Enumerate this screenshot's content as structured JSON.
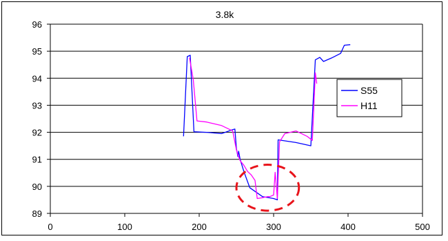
{
  "chart_data": {
    "type": "line",
    "title": "3.8k",
    "xlabel": "",
    "ylabel": "",
    "xlim": [
      0,
      500
    ],
    "ylim": [
      89,
      96
    ],
    "x_ticks": [
      0,
      100,
      200,
      300,
      400,
      500
    ],
    "y_ticks": [
      89,
      90,
      91,
      92,
      93,
      94,
      95,
      96
    ],
    "grid": "horizontal",
    "legend_position": "right",
    "series": [
      {
        "name": "S55",
        "color": "#0000ff",
        "points": [
          [
            179,
            91.85
          ],
          [
            184,
            94.8
          ],
          [
            188,
            94.85
          ],
          [
            193,
            92.02
          ],
          [
            210,
            92.0
          ],
          [
            230,
            91.95
          ],
          [
            245,
            92.1
          ],
          [
            248,
            92.12
          ],
          [
            250,
            91.4
          ],
          [
            252,
            91.1
          ],
          [
            253,
            91.3
          ],
          [
            255,
            91.0
          ],
          [
            260,
            90.55
          ],
          [
            268,
            89.95
          ],
          [
            285,
            89.62
          ],
          [
            300,
            89.55
          ],
          [
            305,
            89.5
          ],
          [
            306,
            91.72
          ],
          [
            330,
            91.62
          ],
          [
            350,
            91.5
          ],
          [
            356,
            94.68
          ],
          [
            362,
            94.77
          ],
          [
            367,
            94.62
          ],
          [
            378,
            94.75
          ],
          [
            390,
            94.92
          ],
          [
            395,
            95.22
          ],
          [
            403,
            95.24
          ]
        ]
      },
      {
        "name": "H11",
        "color": "#ff00ff",
        "points": [
          [
            187,
            94.75
          ],
          [
            192,
            93.95
          ],
          [
            197,
            92.42
          ],
          [
            210,
            92.38
          ],
          [
            230,
            92.25
          ],
          [
            245,
            92.05
          ],
          [
            250,
            91.35
          ],
          [
            253,
            91.1
          ],
          [
            255,
            90.95
          ],
          [
            260,
            90.78
          ],
          [
            265,
            90.55
          ],
          [
            270,
            90.42
          ],
          [
            275,
            90.22
          ],
          [
            278,
            89.55
          ],
          [
            285,
            89.58
          ],
          [
            292,
            89.62
          ],
          [
            295,
            89.62
          ],
          [
            300,
            89.68
          ],
          [
            302,
            90.52
          ],
          [
            305,
            89.55
          ],
          [
            308,
            91.65
          ],
          [
            315,
            91.95
          ],
          [
            330,
            92.05
          ],
          [
            345,
            91.85
          ],
          [
            352,
            91.7
          ],
          [
            356,
            94.2
          ],
          [
            358,
            93.8
          ]
        ]
      }
    ],
    "annotations": [
      {
        "type": "dashed-ellipse",
        "color": "#e8141b",
        "center": [
          292,
          89.95
        ],
        "rx_data": 42,
        "ry_data": 0.85
      }
    ]
  }
}
